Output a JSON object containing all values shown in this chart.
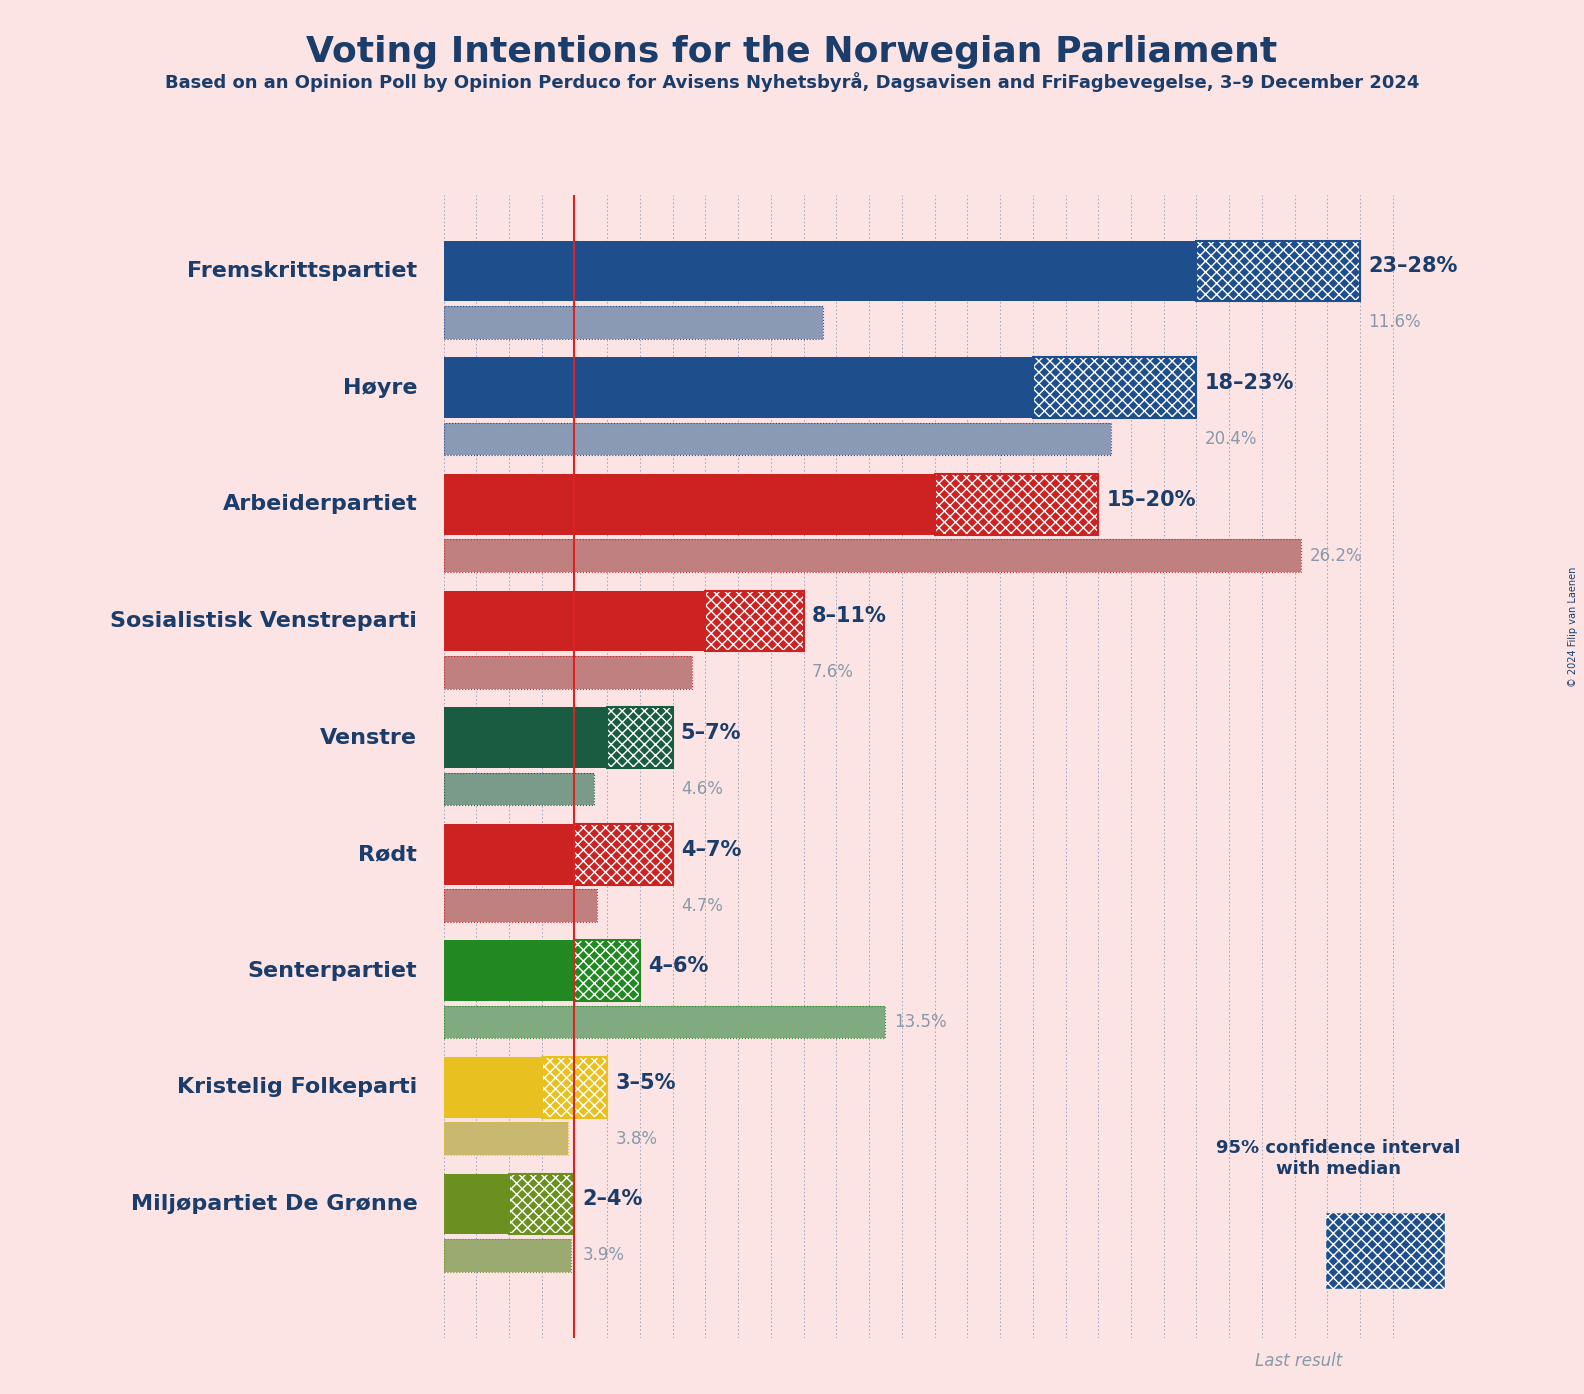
{
  "title": "Voting Intentions for the Norwegian Parliament",
  "subtitle": "Based on an Opinion Poll by Opinion Perduco for Avisens Nyhetsbyrå, Dagsavisen and FriFagbevegelse, 3–9 December 2024",
  "copyright": "© 2024 Filip van Laenen",
  "background_color": "#fce4e4",
  "parties": [
    {
      "name": "Fremskrittspartiet",
      "ci_low": 23,
      "ci_high": 28,
      "last_result": 11.6,
      "color": "#1f4e8c",
      "hatch_color": "#1f4e8c",
      "last_color": "#8a9ab5",
      "label": "23–28%",
      "last_label": "11.6%"
    },
    {
      "name": "Høyre",
      "ci_low": 18,
      "ci_high": 23,
      "last_result": 20.4,
      "color": "#1f4e8c",
      "hatch_color": "#1f4e8c",
      "last_color": "#8a9ab5",
      "label": "18–23%",
      "last_label": "20.4%"
    },
    {
      "name": "Arbeiderpartiet",
      "ci_low": 15,
      "ci_high": 20,
      "last_result": 26.2,
      "color": "#cc2222",
      "hatch_color": "#cc2222",
      "last_color": "#c08080",
      "label": "15–20%",
      "last_label": "26.2%"
    },
    {
      "name": "Sosialistisk Venstreparti",
      "ci_low": 8,
      "ci_high": 11,
      "last_result": 7.6,
      "color": "#cc2222",
      "hatch_color": "#cc2222",
      "last_color": "#c08080",
      "label": "8–11%",
      "last_label": "7.6%"
    },
    {
      "name": "Venstre",
      "ci_low": 5,
      "ci_high": 7,
      "last_result": 4.6,
      "color": "#1a5c42",
      "hatch_color": "#1a5c42",
      "last_color": "#7a9a8a",
      "label": "5–7%",
      "last_label": "4.6%"
    },
    {
      "name": "Rødt",
      "ci_low": 4,
      "ci_high": 7,
      "last_result": 4.7,
      "color": "#cc2222",
      "hatch_color": "#cc2222",
      "last_color": "#c08080",
      "label": "4–7%",
      "last_label": "4.7%"
    },
    {
      "name": "Senterpartiet",
      "ci_low": 4,
      "ci_high": 6,
      "last_result": 13.5,
      "color": "#228822",
      "hatch_color": "#228822",
      "last_color": "#80aa80",
      "label": "4–6%",
      "last_label": "13.5%"
    },
    {
      "name": "Kristelig Folkeparti",
      "ci_low": 3,
      "ci_high": 5,
      "last_result": 3.8,
      "color": "#e8c020",
      "hatch_color": "#e8c020",
      "last_color": "#c8b870",
      "label": "3–5%",
      "last_label": "3.8%"
    },
    {
      "name": "Miljøpartiet De Grønne",
      "ci_low": 2,
      "ci_high": 4,
      "last_result": 3.9,
      "color": "#6b9020",
      "hatch_color": "#6b9020",
      "last_color": "#9aaa70",
      "label": "2–4%",
      "last_label": "3.9%"
    }
  ],
  "xlim": [
    0,
    30
  ],
  "red_line_x": 4.0,
  "title_color": "#1a3d6b",
  "label_color": "#1a3d6b",
  "last_result_color": "#8899aa",
  "grid_color": "#1f4e8c",
  "legend_color": "#1f4e8c",
  "legend_last_color": "#9aabb8"
}
